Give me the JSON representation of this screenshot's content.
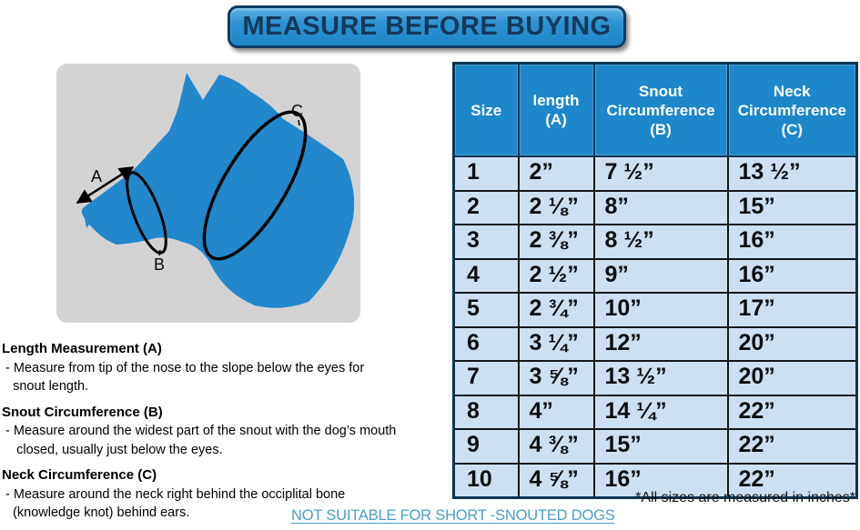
{
  "banner": {
    "label": "MEASURE BEFORE BUYING"
  },
  "diagram": {
    "labels": {
      "a": "A",
      "b": "B",
      "c": "C"
    }
  },
  "instructions": [
    {
      "heading": "Length Measurement (A)",
      "body": " - Measure from tip of the nose to the slope below the eyes for\n   snout length."
    },
    {
      "heading": "Snout Circumference (B)",
      "body": " - Measure around the widest part of the snout with the dog’s mouth\n    closed, usually just below the eyes."
    },
    {
      "heading": "Neck Circumference (C)",
      "body": " - Measure around the neck right behind the occiplital bone\n   (knowledge knot) behind ears."
    }
  ],
  "table": {
    "headers": [
      "Size",
      "length\n(A)",
      "Snout\nCircumference\n(B)",
      "Neck\nCircumference\n(C)"
    ],
    "rows": [
      [
        "1",
        "2”",
        "7 ½”",
        "13 ½”"
      ],
      [
        "2",
        "2 ⅛”",
        "8”",
        "15”"
      ],
      [
        "3",
        "2 ⅜”",
        "8 ½”",
        "16”"
      ],
      [
        "4",
        "2 ½”",
        "9”",
        "16”"
      ],
      [
        "5",
        "2 ¾”",
        "10”",
        "17”"
      ],
      [
        "6",
        "3 ¼”",
        "12”",
        "20”"
      ],
      [
        "7",
        "3 ⅝”",
        "13 ½”",
        "20”"
      ],
      [
        "8",
        "4”",
        "14 ¼”",
        "22”"
      ],
      [
        "9",
        "4 ⅜”",
        "15”",
        "22”"
      ],
      [
        "10",
        "4 ⅝”",
        "16”",
        "22”"
      ]
    ]
  },
  "footnote": "*All sizes are measured in inches*",
  "warning": "NOT SUITABLE FOR SHORT -SNOUTED DOGS",
  "colors": {
    "header_blue": "#1e87c9",
    "row_light_blue": "#cde0f2",
    "banner_blue": "#2e93d3",
    "dog_blue": "#2287cb",
    "link_blue": "#4a9fc9",
    "figure_gray": "#d3d3d4",
    "dark_border": "#0d3350"
  }
}
